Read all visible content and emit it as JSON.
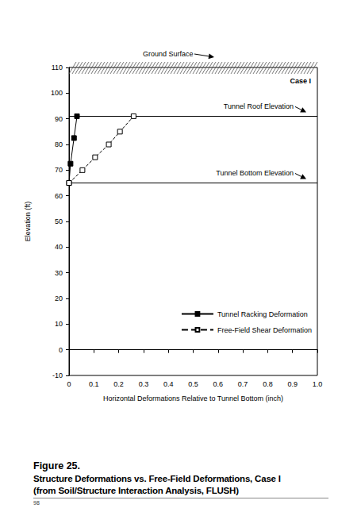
{
  "chart_data": {
    "type": "line",
    "x_label": "Horizontal Deformations Relative to Tunnel Bottom (inch)",
    "y_label": "Elevation (ft)",
    "xlim": [
      0,
      1
    ],
    "xticks": [
      0,
      0.1,
      0.2,
      0.3,
      0.4,
      0.5,
      0.6,
      0.7,
      0.8,
      0.9,
      {
        "value": 1,
        "label": "1.0"
      }
    ],
    "ylim": [
      -10,
      110
    ],
    "yticks": [
      -10,
      0,
      10,
      20,
      30,
      40,
      50,
      60,
      70,
      80,
      90,
      100,
      110
    ],
    "grid": false,
    "legend": "lower right",
    "series": [
      {
        "name": "Tunnel Racking Deformation",
        "color": "#000000",
        "marker": "square",
        "line_style": "solid",
        "x": [
          0,
          0.006,
          0.02,
          0.032
        ],
        "values": [
          65,
          72.5,
          82.5,
          91
        ]
      },
      {
        "name": "Free-Field Shear Deformation",
        "color": "#000000",
        "marker": "open-square",
        "line_style": "dashed",
        "x": [
          0,
          0.054,
          0.105,
          0.16,
          0.205,
          0.26
        ],
        "values": [
          65,
          70,
          75,
          80,
          85,
          91
        ]
      }
    ],
    "reference_lines": [
      {
        "y": 91,
        "label": "Tunnel Roof Elevation"
      },
      {
        "y": 65,
        "label": "Tunnel Bottom Elevation"
      }
    ],
    "annotations": [
      "Ground Surface",
      "Case I"
    ]
  },
  "caption": {
    "figure": "Figure 25.",
    "lines": [
      "Structure Deformations vs. Free-Field Deformations, Case I",
      "(from Soil/Structure Interaction Analysis, FLUSH)"
    ]
  },
  "page_number": "98"
}
